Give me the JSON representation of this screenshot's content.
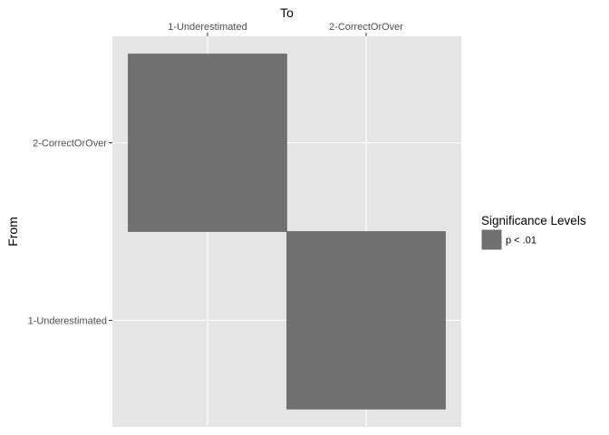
{
  "chart_data": {
    "type": "heatmap",
    "xlabel": "To",
    "ylabel": "From",
    "x_categories": [
      "1-Underestimated",
      "2-CorrectOrOver"
    ],
    "y_categories": [
      "1-Underestimated",
      "2-CorrectOrOver"
    ],
    "cells": [
      {
        "from": "2-CorrectOrOver",
        "to": "1-Underestimated",
        "level": "p < .01"
      },
      {
        "from": "1-Underestimated",
        "to": "2-CorrectOrOver",
        "level": "p < .01"
      }
    ],
    "legend": {
      "title": "Significance Levels",
      "position": "right",
      "entries": [
        {
          "label": "p < .01",
          "color": "#707070"
        }
      ]
    },
    "panel_background": "#e5e5e5",
    "grid": true
  }
}
